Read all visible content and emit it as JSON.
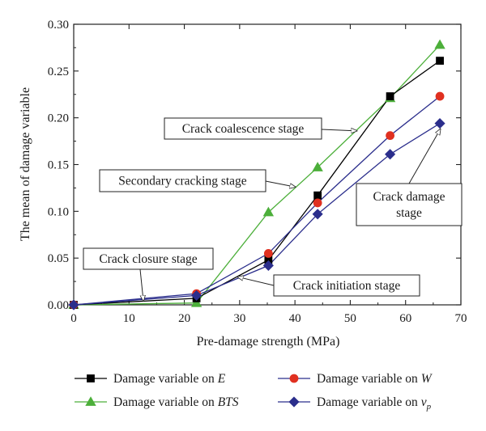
{
  "chart_data": {
    "type": "line",
    "title": "",
    "xlabel": "Pre-damage strength (MPa)",
    "ylabel": "The mean of damage variable",
    "xlim": [
      0,
      70
    ],
    "ylim": [
      0,
      0.3
    ],
    "xticks": [
      "0",
      "10",
      "20",
      "30",
      "40",
      "50",
      "60",
      "70"
    ],
    "yticks": [
      "0.00",
      "0.05",
      "0.10",
      "0.15",
      "0.20",
      "0.25",
      "0.30"
    ],
    "grid": false,
    "legend_placement": "bottom",
    "series": [
      {
        "name": "Damage variable on E",
        "label_prefix": "Damage variable on ",
        "label_var": "E",
        "label_sub": "",
        "color": "#000000",
        "line_color": "#000000",
        "marker": "square",
        "x": [
          0,
          22.2,
          35.2,
          44.1,
          57.2,
          66.2
        ],
        "y": [
          0.0,
          0.007,
          0.048,
          0.117,
          0.223,
          0.261
        ]
      },
      {
        "name": "Damage variable on W",
        "label_prefix": "Damage variable on ",
        "label_var": "W",
        "label_sub": "",
        "color": "#e03020",
        "line_color": "#2b2e8c",
        "marker": "circle",
        "x": [
          0,
          22.2,
          35.2,
          44.1,
          57.2,
          66.2
        ],
        "y": [
          0.0,
          0.012,
          0.055,
          0.109,
          0.181,
          0.223
        ]
      },
      {
        "name": "Damage variable on BTS",
        "label_prefix": "Damage variable on ",
        "label_var": "BTS",
        "label_sub": "",
        "color": "#4caf3a",
        "line_color": "#4caf3a",
        "marker": "triangle",
        "x": [
          0,
          22.2,
          35.2,
          44.1,
          57.2,
          66.2
        ],
        "y": [
          0.0,
          0.002,
          0.099,
          0.147,
          0.221,
          0.278
        ]
      },
      {
        "name": "Damage variable on vp",
        "label_prefix": "Damage variable on ",
        "label_var": "v",
        "label_sub": "p",
        "color": "#2b2e8c",
        "line_color": "#2b2e8c",
        "marker": "diamond",
        "x": [
          0,
          22.2,
          35.2,
          44.1,
          57.2,
          66.2
        ],
        "y": [
          0.0,
          0.01,
          0.042,
          0.097,
          0.161,
          0.194
        ]
      }
    ],
    "annotations": [
      {
        "lines": [
          "Crack coalescence stage"
        ],
        "arrow_to": [
          51.2,
          0.186
        ]
      },
      {
        "lines": [
          "Secondary cracking stage"
        ],
        "arrow_to": [
          40.1,
          0.126
        ]
      },
      {
        "lines": [
          "Crack damage",
          "stage"
        ],
        "arrow_to": [
          66.3,
          0.188
        ]
      },
      {
        "lines": [
          "Crack closure stage"
        ],
        "arrow_to": [
          12.6,
          0.004
        ]
      },
      {
        "lines": [
          "Crack initiation stage"
        ],
        "arrow_to": [
          29.6,
          0.03
        ]
      }
    ]
  }
}
